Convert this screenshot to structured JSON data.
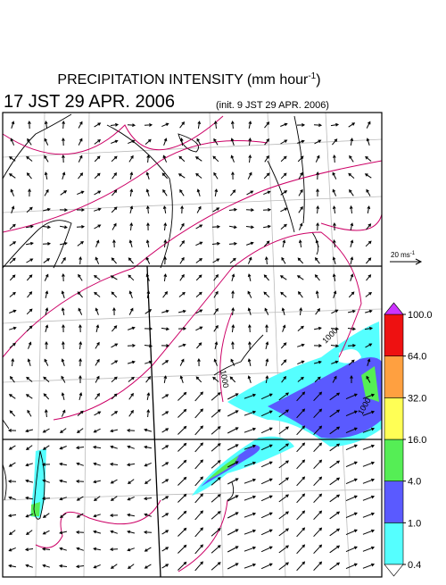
{
  "header": {
    "title": "PRECIPITATION INTENSITY (mm hour",
    "title_sup": "-1",
    "title_end": ")",
    "time": "17 JST 29 APR. 2006",
    "init": "(init. 9 JST 29 APR. 2006)"
  },
  "reference_vector": {
    "label": "20 ms",
    "label_sup": "-1"
  },
  "contour_labels": [
    "1000",
    "1000",
    "1000"
  ],
  "colorbar": {
    "under_color": "#ffffff",
    "over_color": "#cc33ff",
    "colors": [
      "#55ffff",
      "#5a5aff",
      "#55ee55",
      "#ffff55",
      "#ffa040",
      "#ee1111"
    ],
    "ticks": [
      {
        "value": 0.4,
        "label": "0.4"
      },
      {
        "value": 1,
        "label": "1.0"
      },
      {
        "value": 4,
        "label": "4.0"
      },
      {
        "value": 16,
        "label": "16.0"
      },
      {
        "value": 32,
        "label": "32.0"
      },
      {
        "value": 64,
        "label": "64.0"
      },
      {
        "value": 100,
        "label": "100.0"
      }
    ]
  }
}
